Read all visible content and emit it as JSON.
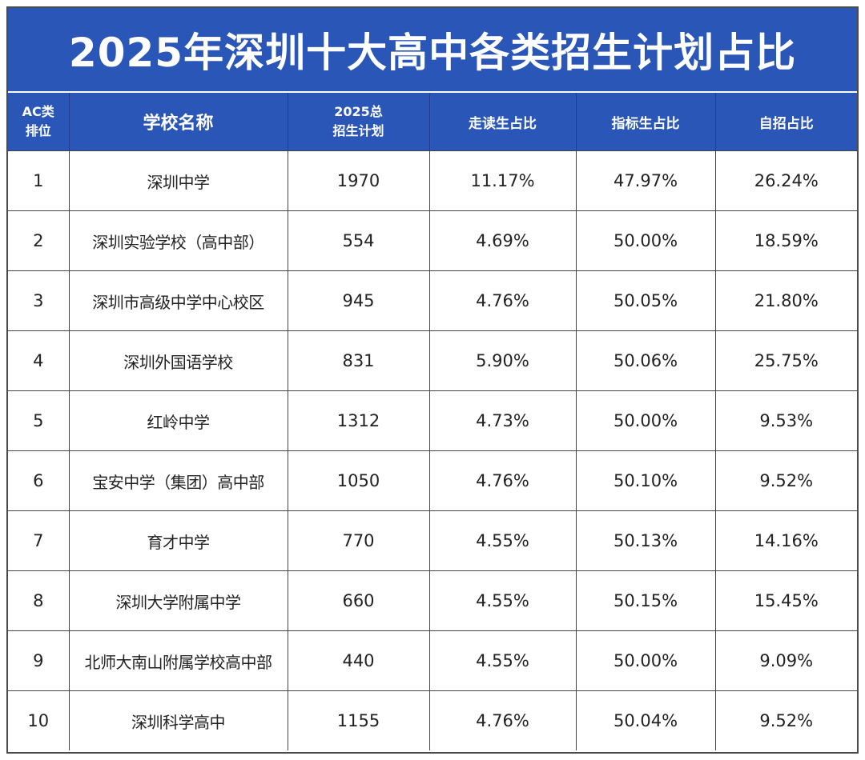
{
  "title": "2025年深圳十大高中各类招生计划占比",
  "colors": {
    "header_bg": "#2a56b8",
    "header_text": "#ffffff",
    "grid": "#444444"
  },
  "headers": {
    "rank_line1": "AC类",
    "rank_line2": "排位",
    "school": "学校名称",
    "total_line1": "2025总",
    "total_line2": "招生计划",
    "walk": "走读生占比",
    "quota": "指标生占比",
    "self": "自招占比"
  },
  "rows": [
    {
      "rank": "1",
      "school": "深圳中学",
      "total": "1970",
      "walk": "11.17%",
      "quota": "47.97%",
      "self": "26.24%"
    },
    {
      "rank": "2",
      "school": "深圳实验学校（高中部）",
      "total": "554",
      "walk": "4.69%",
      "quota": "50.00%",
      "self": "18.59%"
    },
    {
      "rank": "3",
      "school": "深圳市高级中学中心校区",
      "total": "945",
      "walk": "4.76%",
      "quota": "50.05%",
      "self": "21.80%"
    },
    {
      "rank": "4",
      "school": "深圳外国语学校",
      "total": "831",
      "walk": "5.90%",
      "quota": "50.06%",
      "self": "25.75%"
    },
    {
      "rank": "5",
      "school": "红岭中学",
      "total": "1312",
      "walk": "4.73%",
      "quota": "50.00%",
      "self": "9.53%"
    },
    {
      "rank": "6",
      "school": "宝安中学（集团）高中部",
      "total": "1050",
      "walk": "4.76%",
      "quota": "50.10%",
      "self": "9.52%"
    },
    {
      "rank": "7",
      "school": "育才中学",
      "total": "770",
      "walk": "4.55%",
      "quota": "50.13%",
      "self": "14.16%"
    },
    {
      "rank": "8",
      "school": "深圳大学附属中学",
      "total": "660",
      "walk": "4.55%",
      "quota": "50.15%",
      "self": "15.45%"
    },
    {
      "rank": "9",
      "school": "北师大南山附属学校高中部",
      "total": "440",
      "walk": "4.55%",
      "quota": "50.00%",
      "self": "9.09%"
    },
    {
      "rank": "10",
      "school": "深圳科学高中",
      "total": "1155",
      "walk": "4.76%",
      "quota": "50.04%",
      "self": "9.52%"
    }
  ]
}
